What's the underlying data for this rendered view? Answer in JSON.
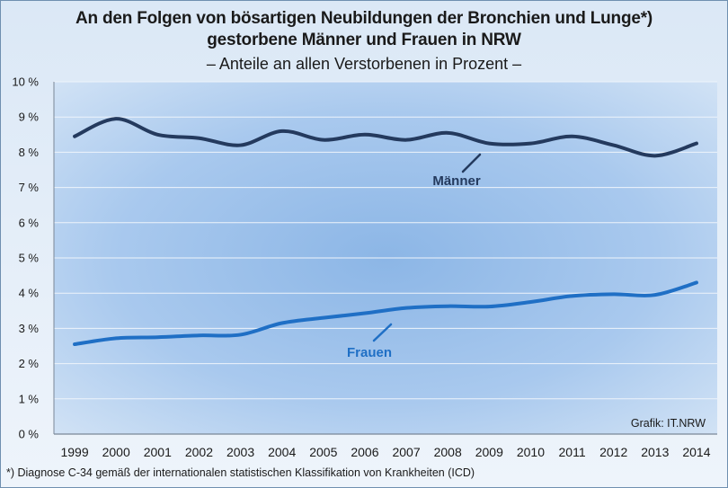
{
  "title_line1": "An den Folgen von bösartigen Neubildungen der Bronchien und Lunge*)",
  "title_line2": "gestorbene Männer und Frauen in NRW",
  "subtitle": "– Anteile an allen Verstorbenen in Prozent –",
  "footnote": "*) Diagnose C-34 gemäß der internationalen statistischen Klassifikation von Krankheiten (ICD)",
  "source": "Grafik: IT.NRW",
  "colors": {
    "maenner": "#243a5e",
    "frauen": "#1f6fc5"
  },
  "chart_data": {
    "type": "line",
    "x": [
      "1999",
      "2000",
      "2001",
      "2002",
      "2003",
      "2004",
      "2005",
      "2006",
      "2007",
      "2008",
      "2009",
      "2010",
      "2011",
      "2012",
      "2013",
      "2014"
    ],
    "yticks": [
      "0 %",
      "1 %",
      "2 %",
      "3 %",
      "4 %",
      "5 %",
      "6 %",
      "7 %",
      "8 %",
      "9 %",
      "10 %"
    ],
    "ylim": [
      0,
      10
    ],
    "grid": true,
    "series": [
      {
        "name": "Männer",
        "values": [
          8.45,
          8.95,
          8.5,
          8.4,
          8.2,
          8.6,
          8.35,
          8.5,
          8.35,
          8.55,
          8.25,
          8.25,
          8.45,
          8.2,
          7.9,
          8.25
        ]
      },
      {
        "name": "Frauen",
        "values": [
          2.55,
          2.72,
          2.75,
          2.8,
          2.82,
          3.15,
          3.3,
          3.43,
          3.58,
          3.63,
          3.62,
          3.75,
          3.92,
          3.97,
          3.95,
          4.3
        ]
      }
    ]
  }
}
